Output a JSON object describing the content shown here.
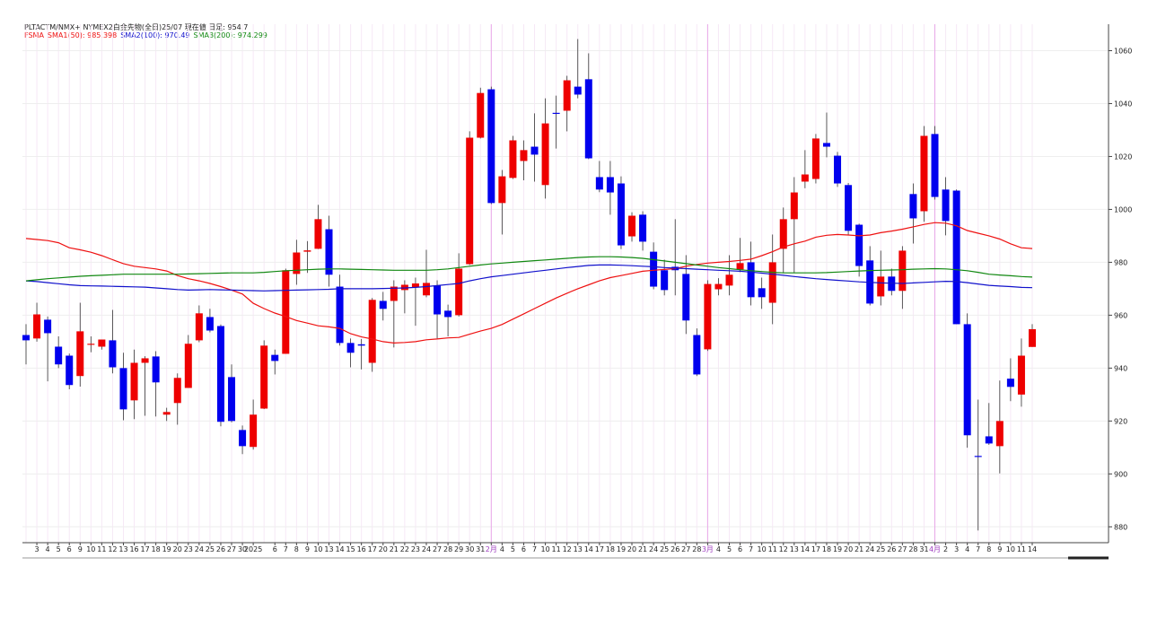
{
  "chart_data": {
    "type": "candlestick",
    "title": "PLTACTM/NMX+ NYMEX2白金先物(全日)25/07  現在値 日足: 954.7",
    "legend_title": "FSMA",
    "up_color": "#ee0000",
    "down_color": "#0000ee",
    "categories": [
      null,
      "3",
      "4",
      "5",
      "6",
      "9",
      "10",
      "11",
      "12",
      "13",
      "16",
      "17",
      "18",
      "19",
      "20",
      "23",
      "24",
      "25",
      "26",
      "27",
      "30",
      "2025",
      null,
      "6",
      "7",
      "8",
      "9",
      "10",
      "13",
      "14",
      "15",
      "16",
      "17",
      "20",
      "21",
      "22",
      "23",
      "24",
      "27",
      "28",
      "29",
      "30",
      "31",
      "2月",
      "4",
      "5",
      "6",
      "7",
      "10",
      "11",
      "12",
      "13",
      "14",
      "17",
      "18",
      "19",
      "20",
      "21",
      "24",
      "25",
      "26",
      "27",
      "28",
      "3月",
      "4",
      "5",
      "6",
      "7",
      "10",
      "11",
      "12",
      "13",
      "14",
      "17",
      "18",
      "19",
      "20",
      "21",
      "24",
      "25",
      "26",
      "27",
      "28",
      "31",
      "4月",
      "2",
      "3",
      "4",
      "7",
      "8",
      "9",
      "10",
      "11",
      "14"
    ],
    "ohlc": {
      "open": [
        952.5,
        951.2,
        958.3,
        948.1,
        944.7,
        937,
        948.8,
        948.1,
        950.5,
        940,
        927.8,
        942,
        944.4,
        922.4,
        926.8,
        932.5,
        950.5,
        959.3,
        955.9,
        936.6,
        916.6,
        910.2,
        924.7,
        945,
        945.4,
        975.6,
        984,
        985.1,
        992.5,
        970.8,
        949.5,
        949,
        942,
        965.4,
        965.4,
        969.5,
        970.5,
        967.5,
        971.2,
        961.7,
        960,
        979.3,
        1027.1,
        1045.4,
        1002.4,
        1011.9,
        1018.3,
        1023.7,
        1009.2,
        1036.5,
        1037.3,
        1046.4,
        1049.2,
        1012.2,
        1012.2,
        1009.8,
        989.8,
        998,
        984,
        977,
        978.3,
        975.6,
        952.5,
        947.1,
        969.8,
        971.2,
        977.3,
        980,
        970.2,
        964.7,
        985.1,
        996.3,
        1010.5,
        1011.5,
        1025.1,
        1020.3,
        1009.2,
        994.2,
        980.7,
        967.1,
        974.6,
        969.2,
        1005.8,
        999.3,
        1028.5,
        1007.5,
        1007.1,
        956.6,
        906.8,
        914.2,
        910.5,
        936,
        930,
        948
      ],
      "high": [
        956.6,
        964.7,
        959.5,
        952,
        945.5,
        964.7,
        952,
        950.8,
        962,
        945.8,
        947,
        944.5,
        946.4,
        925,
        938,
        952.5,
        963.7,
        962.4,
        956.5,
        941.4,
        918.3,
        928.1,
        950.5,
        947,
        977.6,
        988.5,
        988,
        1001.7,
        997.6,
        975.3,
        951.2,
        951,
        966.5,
        968.8,
        973.2,
        973.2,
        974.2,
        984.7,
        973.2,
        964,
        983.4,
        1029.5,
        1046,
        1046.4,
        1014.9,
        1027.8,
        1026.1,
        1036.3,
        1042,
        1043,
        1050.5,
        1064.4,
        1059,
        1018.3,
        1018.3,
        1012.5,
        998.9,
        999.3,
        987.5,
        981,
        996.3,
        982.7,
        955,
        973.2,
        974,
        982.7,
        989.2,
        987.8,
        974.2,
        990.5,
        1000.7,
        1012.2,
        1022.4,
        1028.5,
        1036.6,
        1021.7,
        1010,
        994.6,
        986.1,
        984.4,
        977.6,
        986.1,
        1009.8,
        1031.5,
        1031.5,
        1012.2,
        1007.5,
        960.7,
        928.1,
        926.8,
        935.3,
        943.7,
        951.2,
        956.6
      ],
      "low": [
        941.4,
        950,
        935,
        940,
        932,
        933,
        946,
        947,
        938,
        920.3,
        920.7,
        922,
        921.7,
        920,
        918.6,
        932.5,
        949.8,
        953.5,
        918,
        919.5,
        907.5,
        909.2,
        924.5,
        937.6,
        945.4,
        971.5,
        976,
        985,
        970.8,
        948.5,
        940.3,
        939.5,
        938.6,
        958,
        947.8,
        960.7,
        956,
        966.8,
        951.2,
        952,
        959.5,
        979,
        1026.8,
        1002,
        990.5,
        1011.5,
        1011,
        1010.5,
        1004.1,
        1023,
        1029.5,
        1042,
        1019,
        1006.5,
        998,
        985,
        987.8,
        984.4,
        969.8,
        967.5,
        967.5,
        952.9,
        937,
        946.5,
        967.5,
        967.5,
        976.3,
        963.7,
        962.4,
        956.6,
        975.9,
        975.9,
        1008,
        1009.8,
        1019.7,
        1008.5,
        990.5,
        974.6,
        963.7,
        963.7,
        967.5,
        962.4,
        987.1,
        995.3,
        1003.7,
        990.2,
        956.6,
        909.9,
        878.6,
        911,
        900.2,
        927.5,
        925.4,
        948
      ],
      "close": [
        950.5,
        960.3,
        953.2,
        941.4,
        933.6,
        953.9,
        949.2,
        950.8,
        940.3,
        924.4,
        942,
        943.7,
        934.6,
        923.4,
        936.3,
        949.2,
        960.7,
        954.2,
        919.7,
        920,
        910.5,
        922.4,
        948.5,
        942.7,
        977,
        983.7,
        984.5,
        996.3,
        975.3,
        949.5,
        945.8,
        948.5,
        965.8,
        962.4,
        970.8,
        971.5,
        972,
        972.2,
        960.3,
        959.3,
        977.6,
        1027.1,
        1044,
        1002.4,
        1012.5,
        1026.1,
        1022.4,
        1020.7,
        1032.5,
        1036.1,
        1048.8,
        1043.4,
        1019.3,
        1007.5,
        1006.4,
        986.4,
        997.6,
        987.8,
        970.8,
        969.5,
        977,
        958,
        937.6,
        971.8,
        971.8,
        975.3,
        979.7,
        966.8,
        966.8,
        980,
        996.3,
        1006.4,
        1013.2,
        1026.8,
        1023.7,
        1009.8,
        991.9,
        978.6,
        964.4,
        974.6,
        969.2,
        984.4,
        996.6,
        1027.8,
        1004.7,
        995.6,
        956.6,
        914.6,
        906.4,
        911.5,
        920,
        932.9,
        944.7,
        954.7
      ]
    },
    "series": [
      {
        "name": "SMA1(50): 985.398",
        "color": "#ee1111",
        "values": [
          989,
          988.6,
          988.2,
          987.4,
          985.5,
          984.7,
          983.8,
          982.5,
          981,
          979.5,
          978.5,
          978,
          977.5,
          976.7,
          975,
          973.8,
          973,
          972,
          970.8,
          969.5,
          968,
          964.5,
          962.5,
          960.8,
          959.5,
          958,
          957,
          956,
          955.6,
          955,
          953,
          951.8,
          951,
          950,
          949.5,
          949.7,
          950,
          950.7,
          951,
          951.4,
          951.6,
          952.8,
          954,
          955,
          956.5,
          958.5,
          960.5,
          962.5,
          964.5,
          966.5,
          968.3,
          970,
          971.5,
          973,
          974.2,
          975,
          975.8,
          976.6,
          977,
          977.3,
          977.6,
          978.5,
          979.2,
          979.7,
          980,
          980.3,
          980.7,
          981.2,
          982.5,
          984,
          985.8,
          987,
          988,
          989.5,
          990.2,
          990.5,
          990.3,
          990,
          990.3,
          991.2,
          991.8,
          992.5,
          993.4,
          994.3,
          995,
          994.8,
          993.8,
          992,
          991,
          990,
          988.8,
          987,
          985.5,
          985.2
        ]
      },
      {
        "name": "SMA2(100): 970.49",
        "color": "#1111cc",
        "values": [
          973,
          972.7,
          972.3,
          971.9,
          971.5,
          971.2,
          971.1,
          971,
          970.9,
          970.8,
          970.7,
          970.6,
          970.3,
          970,
          969.7,
          969.5,
          969.6,
          969.7,
          969.6,
          969.5,
          969.4,
          969.3,
          969.2,
          969.3,
          969.4,
          969.5,
          969.6,
          969.7,
          969.8,
          970,
          970,
          970,
          970,
          970.1,
          970.2,
          970.3,
          970.5,
          970.8,
          971.2,
          971.6,
          972,
          973,
          973.8,
          974.5,
          975,
          975.5,
          976,
          976.5,
          977,
          977.5,
          978,
          978.4,
          978.8,
          979,
          979,
          978.9,
          978.7,
          978.5,
          978.3,
          978,
          977.8,
          977.6,
          977.4,
          977.2,
          977,
          976.8,
          976.6,
          976.3,
          975.9,
          975.5,
          975.1,
          974.6,
          974.2,
          973.8,
          973.5,
          973.2,
          972.9,
          972.6,
          972.4,
          972.2,
          972.1,
          972,
          972.2,
          972.4,
          972.6,
          972.8,
          972.7,
          972.3,
          971.8,
          971.3,
          971,
          970.8,
          970.5,
          970.4
        ]
      },
      {
        "name": "SMA3(200): 974.299",
        "color": "#118811",
        "values": [
          973,
          973.4,
          973.8,
          974.1,
          974.4,
          974.7,
          974.9,
          975.1,
          975.3,
          975.5,
          975.5,
          975.5,
          975.5,
          975.5,
          975.5,
          975.6,
          975.7,
          975.8,
          975.9,
          976,
          976,
          976,
          976.2,
          976.5,
          976.8,
          977,
          977.2,
          977.4,
          977.5,
          977.5,
          977.4,
          977.3,
          977.2,
          977.1,
          977,
          977,
          977,
          977,
          977.2,
          977.5,
          978,
          978.5,
          979,
          979.4,
          979.7,
          980,
          980.3,
          980.6,
          980.9,
          981.2,
          981.5,
          981.8,
          982,
          982.1,
          982.1,
          982,
          981.8,
          981.5,
          981,
          980.5,
          980,
          979.5,
          979,
          978.5,
          978,
          977.6,
          977.2,
          976.8,
          976.5,
          976.2,
          976,
          976,
          976,
          976,
          976.1,
          976.3,
          976.5,
          976.7,
          976.9,
          977,
          977.1,
          977.2,
          977.4,
          977.5,
          977.6,
          977.5,
          977.2,
          976.8,
          976.2,
          975.5,
          975.2,
          974.9,
          974.6,
          974.4
        ]
      }
    ],
    "ylim": [
      874,
      1070
    ],
    "yticks": [
      880,
      900,
      920,
      940,
      960,
      980,
      1000,
      1020,
      1040,
      1060
    ],
    "grid": true
  }
}
